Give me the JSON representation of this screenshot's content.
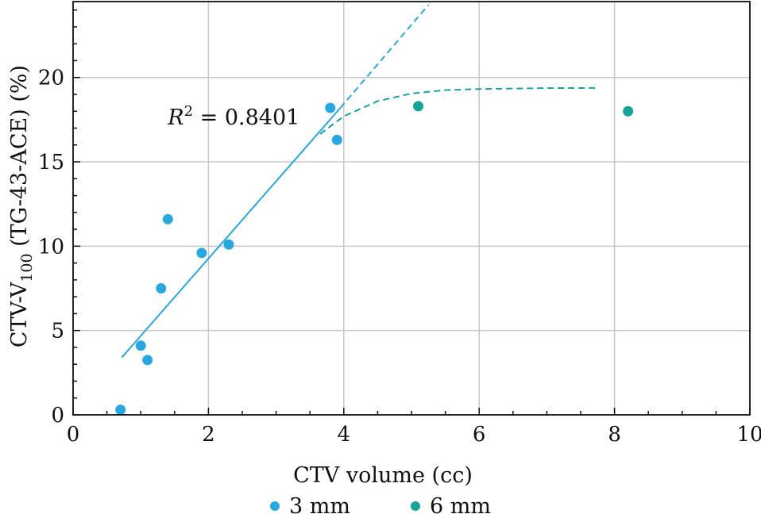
{
  "chart_data": {
    "type": "scatter",
    "xlabel": "CTV volume (cc)",
    "ylabel": {
      "prefix": "CTV-V",
      "subscript": "100",
      "suffix": " (TG-43-ACE) (%)"
    },
    "xlim": [
      0,
      10
    ],
    "ylim": [
      0,
      24.5
    ],
    "xticks": [
      0,
      2,
      4,
      6,
      8,
      10
    ],
    "yticks": [
      0,
      5,
      10,
      15,
      20
    ],
    "grid": true,
    "legend_position": "bottom",
    "colors": {
      "3mm": "#29a7df",
      "6mm": "#16a39a"
    },
    "series": [
      {
        "name": "3 mm",
        "color": "#29a7df",
        "points": [
          {
            "x": 0.7,
            "y": 0.3
          },
          {
            "x": 1.0,
            "y": 4.1
          },
          {
            "x": 1.1,
            "y": 3.25
          },
          {
            "x": 1.3,
            "y": 7.5
          },
          {
            "x": 1.4,
            "y": 11.6
          },
          {
            "x": 1.9,
            "y": 9.6
          },
          {
            "x": 2.3,
            "y": 10.1
          },
          {
            "x": 3.8,
            "y": 18.2
          },
          {
            "x": 3.9,
            "y": 16.3
          }
        ]
      },
      {
        "name": "6 mm",
        "color": "#16a39a",
        "points": [
          {
            "x": 5.1,
            "y": 18.3
          },
          {
            "x": 8.2,
            "y": 18.0
          }
        ]
      }
    ],
    "fits": [
      {
        "name": "linear fit 3 mm",
        "color": "#29a7df",
        "style": "solid",
        "points": [
          {
            "x": 0.72,
            "y": 3.4
          },
          {
            "x": 3.95,
            "y": 18.2
          }
        ]
      },
      {
        "name": "linear fit extension",
        "color": "#29a7df",
        "style": "dashed",
        "points": [
          {
            "x": 3.95,
            "y": 18.2
          },
          {
            "x": 5.25,
            "y": 24.3
          }
        ]
      },
      {
        "name": "saturation fit 6 mm",
        "color": "#16a39a",
        "style": "dashed",
        "points": [
          {
            "x": 3.65,
            "y": 16.65
          },
          {
            "x": 4.0,
            "y": 17.7
          },
          {
            "x": 4.5,
            "y": 18.6
          },
          {
            "x": 5.0,
            "y": 19.05
          },
          {
            "x": 5.5,
            "y": 19.25
          },
          {
            "x": 6.0,
            "y": 19.32
          },
          {
            "x": 7.0,
            "y": 19.37
          },
          {
            "x": 7.75,
            "y": 19.38
          }
        ]
      }
    ],
    "annotation": {
      "prefix": "R",
      "superscript": "2",
      "text": " = 0.8401",
      "x": 1.4,
      "y": 17.2
    },
    "legend": [
      {
        "label": "3 mm",
        "color": "#29a7df"
      },
      {
        "label": "6 mm",
        "color": "#16a39a"
      }
    ]
  }
}
